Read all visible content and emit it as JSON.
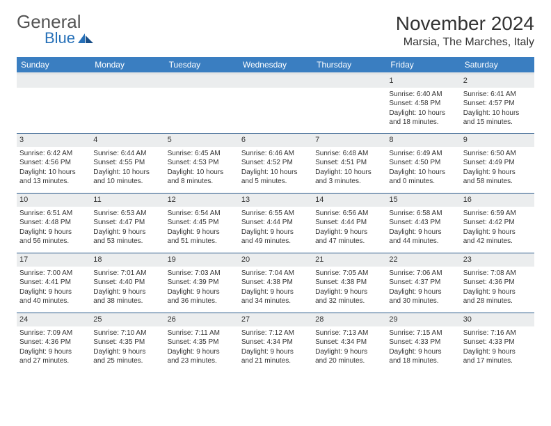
{
  "logo": {
    "general": "General",
    "blue": "Blue"
  },
  "header": {
    "month_title": "November 2024",
    "location": "Marsia, The Marches, Italy"
  },
  "weekdays": [
    "Sunday",
    "Monday",
    "Tuesday",
    "Wednesday",
    "Thursday",
    "Friday",
    "Saturday"
  ],
  "calendar": {
    "header_bg": "#3a7ec1",
    "header_text_color": "#ffffff",
    "daynum_bg": "#ebedee",
    "border_color": "#2a5a8a",
    "body_bg": "#ffffff",
    "text_color": "#333333",
    "font_size_cell": 10,
    "font_size_header": 12
  },
  "weeks": [
    [
      null,
      null,
      null,
      null,
      null,
      {
        "day": "1",
        "sunrise": "Sunrise: 6:40 AM",
        "sunset": "Sunset: 4:58 PM",
        "daylight1": "Daylight: 10 hours",
        "daylight2": "and 18 minutes."
      },
      {
        "day": "2",
        "sunrise": "Sunrise: 6:41 AM",
        "sunset": "Sunset: 4:57 PM",
        "daylight1": "Daylight: 10 hours",
        "daylight2": "and 15 minutes."
      }
    ],
    [
      {
        "day": "3",
        "sunrise": "Sunrise: 6:42 AM",
        "sunset": "Sunset: 4:56 PM",
        "daylight1": "Daylight: 10 hours",
        "daylight2": "and 13 minutes."
      },
      {
        "day": "4",
        "sunrise": "Sunrise: 6:44 AM",
        "sunset": "Sunset: 4:55 PM",
        "daylight1": "Daylight: 10 hours",
        "daylight2": "and 10 minutes."
      },
      {
        "day": "5",
        "sunrise": "Sunrise: 6:45 AM",
        "sunset": "Sunset: 4:53 PM",
        "daylight1": "Daylight: 10 hours",
        "daylight2": "and 8 minutes."
      },
      {
        "day": "6",
        "sunrise": "Sunrise: 6:46 AM",
        "sunset": "Sunset: 4:52 PM",
        "daylight1": "Daylight: 10 hours",
        "daylight2": "and 5 minutes."
      },
      {
        "day": "7",
        "sunrise": "Sunrise: 6:48 AM",
        "sunset": "Sunset: 4:51 PM",
        "daylight1": "Daylight: 10 hours",
        "daylight2": "and 3 minutes."
      },
      {
        "day": "8",
        "sunrise": "Sunrise: 6:49 AM",
        "sunset": "Sunset: 4:50 PM",
        "daylight1": "Daylight: 10 hours",
        "daylight2": "and 0 minutes."
      },
      {
        "day": "9",
        "sunrise": "Sunrise: 6:50 AM",
        "sunset": "Sunset: 4:49 PM",
        "daylight1": "Daylight: 9 hours",
        "daylight2": "and 58 minutes."
      }
    ],
    [
      {
        "day": "10",
        "sunrise": "Sunrise: 6:51 AM",
        "sunset": "Sunset: 4:48 PM",
        "daylight1": "Daylight: 9 hours",
        "daylight2": "and 56 minutes."
      },
      {
        "day": "11",
        "sunrise": "Sunrise: 6:53 AM",
        "sunset": "Sunset: 4:47 PM",
        "daylight1": "Daylight: 9 hours",
        "daylight2": "and 53 minutes."
      },
      {
        "day": "12",
        "sunrise": "Sunrise: 6:54 AM",
        "sunset": "Sunset: 4:45 PM",
        "daylight1": "Daylight: 9 hours",
        "daylight2": "and 51 minutes."
      },
      {
        "day": "13",
        "sunrise": "Sunrise: 6:55 AM",
        "sunset": "Sunset: 4:44 PM",
        "daylight1": "Daylight: 9 hours",
        "daylight2": "and 49 minutes."
      },
      {
        "day": "14",
        "sunrise": "Sunrise: 6:56 AM",
        "sunset": "Sunset: 4:44 PM",
        "daylight1": "Daylight: 9 hours",
        "daylight2": "and 47 minutes."
      },
      {
        "day": "15",
        "sunrise": "Sunrise: 6:58 AM",
        "sunset": "Sunset: 4:43 PM",
        "daylight1": "Daylight: 9 hours",
        "daylight2": "and 44 minutes."
      },
      {
        "day": "16",
        "sunrise": "Sunrise: 6:59 AM",
        "sunset": "Sunset: 4:42 PM",
        "daylight1": "Daylight: 9 hours",
        "daylight2": "and 42 minutes."
      }
    ],
    [
      {
        "day": "17",
        "sunrise": "Sunrise: 7:00 AM",
        "sunset": "Sunset: 4:41 PM",
        "daylight1": "Daylight: 9 hours",
        "daylight2": "and 40 minutes."
      },
      {
        "day": "18",
        "sunrise": "Sunrise: 7:01 AM",
        "sunset": "Sunset: 4:40 PM",
        "daylight1": "Daylight: 9 hours",
        "daylight2": "and 38 minutes."
      },
      {
        "day": "19",
        "sunrise": "Sunrise: 7:03 AM",
        "sunset": "Sunset: 4:39 PM",
        "daylight1": "Daylight: 9 hours",
        "daylight2": "and 36 minutes."
      },
      {
        "day": "20",
        "sunrise": "Sunrise: 7:04 AM",
        "sunset": "Sunset: 4:38 PM",
        "daylight1": "Daylight: 9 hours",
        "daylight2": "and 34 minutes."
      },
      {
        "day": "21",
        "sunrise": "Sunrise: 7:05 AM",
        "sunset": "Sunset: 4:38 PM",
        "daylight1": "Daylight: 9 hours",
        "daylight2": "and 32 minutes."
      },
      {
        "day": "22",
        "sunrise": "Sunrise: 7:06 AM",
        "sunset": "Sunset: 4:37 PM",
        "daylight1": "Daylight: 9 hours",
        "daylight2": "and 30 minutes."
      },
      {
        "day": "23",
        "sunrise": "Sunrise: 7:08 AM",
        "sunset": "Sunset: 4:36 PM",
        "daylight1": "Daylight: 9 hours",
        "daylight2": "and 28 minutes."
      }
    ],
    [
      {
        "day": "24",
        "sunrise": "Sunrise: 7:09 AM",
        "sunset": "Sunset: 4:36 PM",
        "daylight1": "Daylight: 9 hours",
        "daylight2": "and 27 minutes."
      },
      {
        "day": "25",
        "sunrise": "Sunrise: 7:10 AM",
        "sunset": "Sunset: 4:35 PM",
        "daylight1": "Daylight: 9 hours",
        "daylight2": "and 25 minutes."
      },
      {
        "day": "26",
        "sunrise": "Sunrise: 7:11 AM",
        "sunset": "Sunset: 4:35 PM",
        "daylight1": "Daylight: 9 hours",
        "daylight2": "and 23 minutes."
      },
      {
        "day": "27",
        "sunrise": "Sunrise: 7:12 AM",
        "sunset": "Sunset: 4:34 PM",
        "daylight1": "Daylight: 9 hours",
        "daylight2": "and 21 minutes."
      },
      {
        "day": "28",
        "sunrise": "Sunrise: 7:13 AM",
        "sunset": "Sunset: 4:34 PM",
        "daylight1": "Daylight: 9 hours",
        "daylight2": "and 20 minutes."
      },
      {
        "day": "29",
        "sunrise": "Sunrise: 7:15 AM",
        "sunset": "Sunset: 4:33 PM",
        "daylight1": "Daylight: 9 hours",
        "daylight2": "and 18 minutes."
      },
      {
        "day": "30",
        "sunrise": "Sunrise: 7:16 AM",
        "sunset": "Sunset: 4:33 PM",
        "daylight1": "Daylight: 9 hours",
        "daylight2": "and 17 minutes."
      }
    ]
  ]
}
